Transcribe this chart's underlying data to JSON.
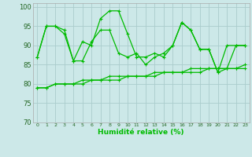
{
  "xlabel": "Humidité relative (%)",
  "xlim": [
    -0.5,
    23.5
  ],
  "ylim": [
    70,
    101
  ],
  "yticks": [
    70,
    75,
    80,
    85,
    90,
    95,
    100
  ],
  "xtick_labels": [
    "0",
    "1",
    "2",
    "3",
    "4",
    "5",
    "6",
    "7",
    "8",
    "9",
    "10",
    "11",
    "12",
    "13",
    "14",
    "15",
    "16",
    "17",
    "18",
    "19",
    "20",
    "21",
    "22",
    "23"
  ],
  "background_color": "#cce8e8",
  "grid_color": "#aacccc",
  "line_color": "#00bb00",
  "line1": [
    87,
    95,
    95,
    94,
    86,
    91,
    90,
    97,
    99,
    99,
    93,
    87,
    87,
    88,
    87,
    90,
    96,
    94,
    89,
    89,
    83,
    84,
    90,
    90
  ],
  "line2": [
    87,
    95,
    95,
    93,
    86,
    86,
    91,
    94,
    94,
    88,
    87,
    88,
    85,
    87,
    88,
    90,
    96,
    94,
    89,
    89,
    83,
    90,
    90,
    90
  ],
  "line3": [
    79,
    79,
    80,
    80,
    80,
    80,
    81,
    81,
    81,
    81,
    82,
    82,
    82,
    82,
    83,
    83,
    83,
    83,
    83,
    84,
    84,
    84,
    84,
    84
  ],
  "line4": [
    79,
    79,
    80,
    80,
    80,
    81,
    81,
    81,
    82,
    82,
    82,
    82,
    82,
    83,
    83,
    83,
    83,
    84,
    84,
    84,
    84,
    84,
    84,
    85
  ]
}
